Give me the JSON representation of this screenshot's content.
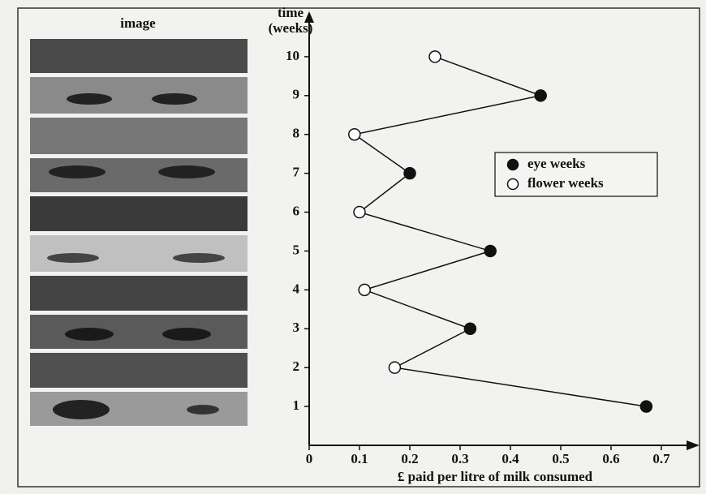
{
  "chart_data": {
    "type": "line",
    "image_column_label": "image",
    "y_label": "time (weeks)",
    "x_label": "£ paid per litre of milk consumed",
    "xlim": [
      0,
      0.75
    ],
    "xticks": [
      0,
      0.1,
      0.2,
      0.3,
      0.4,
      0.5,
      0.6,
      0.7
    ],
    "ylim": [
      0,
      11
    ],
    "yticks": [
      1,
      2,
      3,
      4,
      5,
      6,
      7,
      8,
      9,
      10
    ],
    "legend": "upper right",
    "series": [
      {
        "name": "eye weeks",
        "color": "#111111",
        "filled": true,
        "x": [
          0.67,
          0.32,
          0.36,
          0.2,
          0.46
        ],
        "values": [
          1,
          3,
          5,
          7,
          9
        ]
      },
      {
        "name": "flower weeks",
        "color": "#111111",
        "filled": false,
        "x": [
          0.17,
          0.11,
          0.1,
          0.09,
          0.25
        ],
        "values": [
          2,
          4,
          6,
          8,
          10
        ]
      }
    ]
  }
}
